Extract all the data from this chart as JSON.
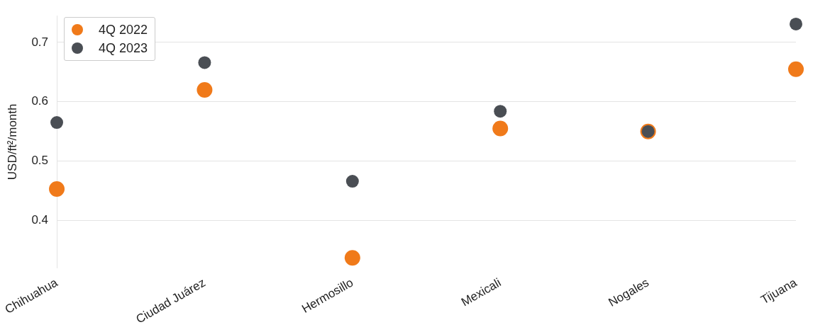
{
  "chart_data": {
    "type": "scatter",
    "ylabel": "USD/ft²/month",
    "categories": [
      "Chihuahua",
      "Ciudad Juárez",
      "Hermosillo",
      "Mexicali",
      "Nogales",
      "Tijuana"
    ],
    "series": [
      {
        "name": "4Q 2022",
        "color": "#f07a1a",
        "values": [
          0.453,
          0.62,
          0.337,
          0.555,
          0.55,
          0.655
        ]
      },
      {
        "name": "4Q 2023",
        "color": "#4a4e54",
        "values": [
          0.565,
          0.666,
          0.466,
          0.584,
          0.55,
          0.731
        ]
      }
    ],
    "ylim": [
      0.32,
      0.745
    ],
    "yticks": [
      0.4,
      0.5,
      0.6,
      0.7
    ],
    "grid": "y",
    "legend": "top left",
    "marker": "circle"
  }
}
